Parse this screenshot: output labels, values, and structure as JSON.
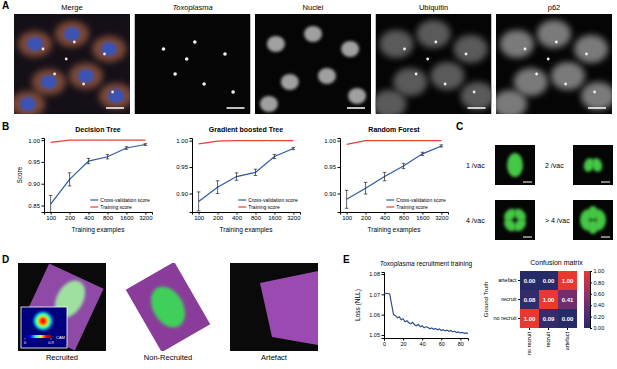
{
  "panel_labels": [
    "A",
    "B",
    "C",
    "D",
    "E"
  ],
  "images_a": {
    "titles": [
      "Merge",
      "Toxoplasma",
      "Nuclei",
      "Ubiquitin",
      "p62"
    ]
  },
  "images_c": {
    "labels": [
      "1 /vac",
      "2 /vac",
      "4 /vac",
      "> 4 /vac"
    ]
  },
  "images_d": {
    "labels": [
      "Recruited",
      "Non-Recruited",
      "Artefact"
    ],
    "cam_scale": {
      "range": [
        0,
        0.9
      ],
      "ticks": [
        0,
        0.9
      ],
      "label": "CAM"
    }
  },
  "chart_data": [
    {
      "type": "line",
      "title": "Decision Tree",
      "x_label": "Training examples",
      "y_label": "Score",
      "categories": [
        "100",
        "200",
        "400",
        "800",
        "1600",
        "3200"
      ],
      "ylim": [
        0.835,
        1.005
      ],
      "yticks": [
        0.85,
        {
          "value": 0.9,
          "label": "0.90"
        },
        0.95,
        {
          "value": 1,
          "label": "1.00"
        }
      ],
      "legend": "lower right",
      "series": [
        {
          "name": "Cross-validation score",
          "color": "#2c5aa8",
          "values": [
            0.853,
            0.91,
            0.952,
            0.962,
            0.982,
            0.99
          ],
          "errors": [
            0.02,
            0.015,
            0.006,
            0.005,
            0.003,
            0.002
          ]
        },
        {
          "name": "Training score",
          "color": "#e5412f",
          "values": [
            0.995,
            1,
            1,
            1,
            1,
            1
          ]
        }
      ]
    },
    {
      "type": "line",
      "title": "Gradient boosted Tree",
      "x_label": "Training examples",
      "categories": [
        "100",
        "200",
        "400",
        "800",
        "1600",
        "3200"
      ],
      "ylim": [
        0.865,
        1.005
      ],
      "yticks": [
        {
          "value": 0.9,
          "label": "0.90"
        },
        0.95,
        {
          "value": 1,
          "label": "1.00"
        }
      ],
      "legend": "lower right",
      "series": [
        {
          "name": "Cross-validation score",
          "color": "#2c5aa8",
          "values": [
            0.885,
            0.912,
            0.932,
            0.94,
            0.97,
            0.985
          ],
          "errors": [
            0.018,
            0.012,
            0.007,
            0.006,
            0.004,
            0.002
          ]
        },
        {
          "name": "Training score",
          "color": "#e5412f",
          "values": [
            0.994,
            0.999,
            1,
            1,
            1,
            1
          ]
        }
      ]
    },
    {
      "type": "line",
      "title": "Random Forest",
      "x_label": "Training examples",
      "categories": [
        "100",
        "200",
        "400",
        "800",
        "1600",
        "3200"
      ],
      "ylim": [
        0.865,
        1.005
      ],
      "yticks": [
        {
          "value": 0.9,
          "label": "0.90"
        },
        0.95,
        {
          "value": 1,
          "label": "1.00"
        }
      ],
      "legend": "lower right",
      "series": [
        {
          "name": "Cross-validation score",
          "color": "#2c5aa8",
          "values": [
            0.889,
            0.91,
            0.932,
            0.952,
            0.975,
            0.99
          ],
          "errors": [
            0.017,
            0.011,
            0.008,
            0.005,
            0.003,
            0.002
          ]
        },
        {
          "name": "Training score",
          "color": "#e5412f",
          "values": [
            0.993,
            1,
            1,
            1,
            1,
            1
          ]
        }
      ]
    },
    {
      "type": "line",
      "title": "Toxoplasma recruitment training",
      "y_label": "Loss (NLL)",
      "x": [
        0,
        2,
        4,
        6,
        8,
        10,
        12,
        14,
        16,
        18,
        20,
        22,
        24,
        26,
        28,
        30,
        32,
        34,
        36,
        38,
        40,
        42,
        44,
        46,
        48,
        50,
        52,
        54,
        56,
        58,
        60,
        62,
        64,
        66,
        68,
        70,
        72,
        74,
        76,
        78,
        80,
        82,
        84,
        86,
        88
      ],
      "xlim": [
        0,
        88
      ],
      "xticks": [
        0,
        20,
        40,
        60,
        80
      ],
      "ylim": [
        1.0485,
        1.081
      ],
      "yticks": [
        1.05,
        1.06,
        1.07,
        1.08
      ],
      "series": [
        {
          "color": "#2c4f8f",
          "values": [
            1.0705,
            1.0705,
            1.0704,
            1.0702,
            1.065,
            1.06,
            1.0595,
            1.0585,
            1.059,
            1.0575,
            1.058,
            1.0565,
            1.057,
            1.056,
            1.0555,
            1.0562,
            1.055,
            1.0545,
            1.0552,
            1.054,
            1.0545,
            1.0535,
            1.054,
            1.0538,
            1.053,
            1.0535,
            1.0528,
            1.0532,
            1.0525,
            1.053,
            1.0522,
            1.0526,
            1.052,
            1.0524,
            1.0518,
            1.0522,
            1.0515,
            1.0518,
            1.0512,
            1.0515,
            1.051,
            1.0513,
            1.0508,
            1.051,
            1.0506
          ]
        }
      ]
    },
    {
      "type": "heatmap",
      "title": "Confusion matrix",
      "y_label": "Ground Truth",
      "categories": [
        "no recruit",
        "recruit",
        "artefact"
      ],
      "y_categories": [
        "artefact",
        "recruit",
        "no recruit"
      ],
      "values": [
        [
          0,
          0,
          1
        ],
        [
          0.08,
          1,
          0.41
        ],
        [
          1,
          0.09,
          0
        ]
      ],
      "value_labels": [
        [
          "0.00",
          "0.00",
          "1.00"
        ],
        [
          "0.08",
          "1.00",
          "0.41"
        ],
        [
          "1.00",
          "0.09",
          "0.00"
        ]
      ],
      "data_labels": true,
      "colorbar": {
        "range": [
          0,
          1
        ],
        "ticks": [
          {
            "value": 0,
            "label": "0.00"
          },
          {
            "value": 0.2,
            "label": "0.20"
          },
          {
            "value": 0.4,
            "label": "0.40"
          },
          {
            "value": 0.6,
            "label": "0.60"
          },
          {
            "value": 0.8,
            "label": "0.80"
          },
          {
            "value": 1,
            "label": "1.00"
          }
        ]
      }
    }
  ]
}
